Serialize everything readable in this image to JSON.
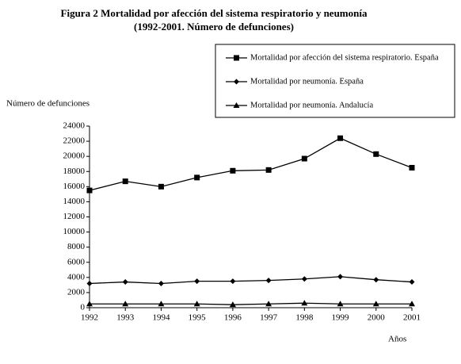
{
  "chart_data": {
    "type": "line",
    "title": "Figura 2 Mortalidad por afección del sistema respiratorio y neumonía",
    "subtitle": "(1992-2001. Número de defunciones)",
    "y_label": "Número de defunciones",
    "x_label": "Años",
    "x": [
      1992,
      1993,
      1994,
      1995,
      1996,
      1997,
      1998,
      1999,
      2000,
      2001
    ],
    "xlim": [
      1992,
      2001
    ],
    "xticks": [
      1992,
      1993,
      1994,
      1995,
      1996,
      1997,
      1998,
      1999,
      2000,
      2001
    ],
    "ylim": [
      0,
      24000
    ],
    "yticks": [
      0,
      2000,
      4000,
      6000,
      8000,
      10000,
      12000,
      14000,
      16000,
      18000,
      20000,
      22000,
      24000
    ],
    "grid": false,
    "legend": "top-right",
    "series": [
      {
        "name": "Mortalidad por afección del sistema respiratorio. España",
        "color": "#000000",
        "marker": "square",
        "values": [
          15500,
          16700,
          16000,
          17200,
          18100,
          18200,
          19700,
          22400,
          20300,
          18500
        ]
      },
      {
        "name": "Mortalidad por neumonía. España",
        "color": "#000000",
        "marker": "diamond",
        "values": [
          3200,
          3400,
          3200,
          3500,
          3500,
          3600,
          3800,
          4100,
          3700,
          3400
        ]
      },
      {
        "name": "Mortalidad por neumonía. Andalucía",
        "color": "#000000",
        "marker": "triangle",
        "values": [
          500,
          500,
          500,
          500,
          400,
          500,
          600,
          500,
          500,
          500
        ]
      }
    ]
  }
}
